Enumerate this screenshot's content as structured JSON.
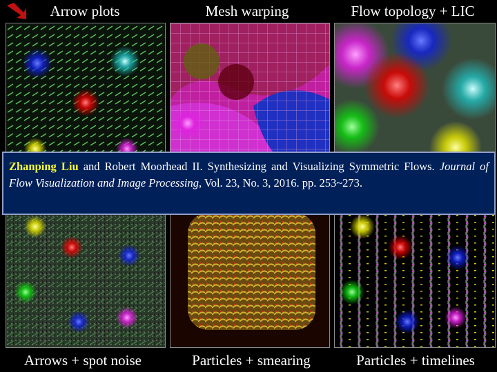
{
  "panels": [
    {
      "caption": "Arrow plots"
    },
    {
      "caption": "Mesh warping"
    },
    {
      "caption": "Flow topology + LIC"
    },
    {
      "caption": "Arrows + spot noise"
    },
    {
      "caption": "Particles + smearing"
    },
    {
      "caption": "Particles + timelines"
    }
  ],
  "citation": {
    "author": "Zhanping Liu",
    "text_before_journal": " and Robert Moorhead II. Synthesizing and Visualizing Symmetric Flows. ",
    "journal": "Journal of Flow Visualization and Image Processing",
    "text_after_journal": ", Vol. 23, No. 3, 2016. pp. 253~273."
  }
}
